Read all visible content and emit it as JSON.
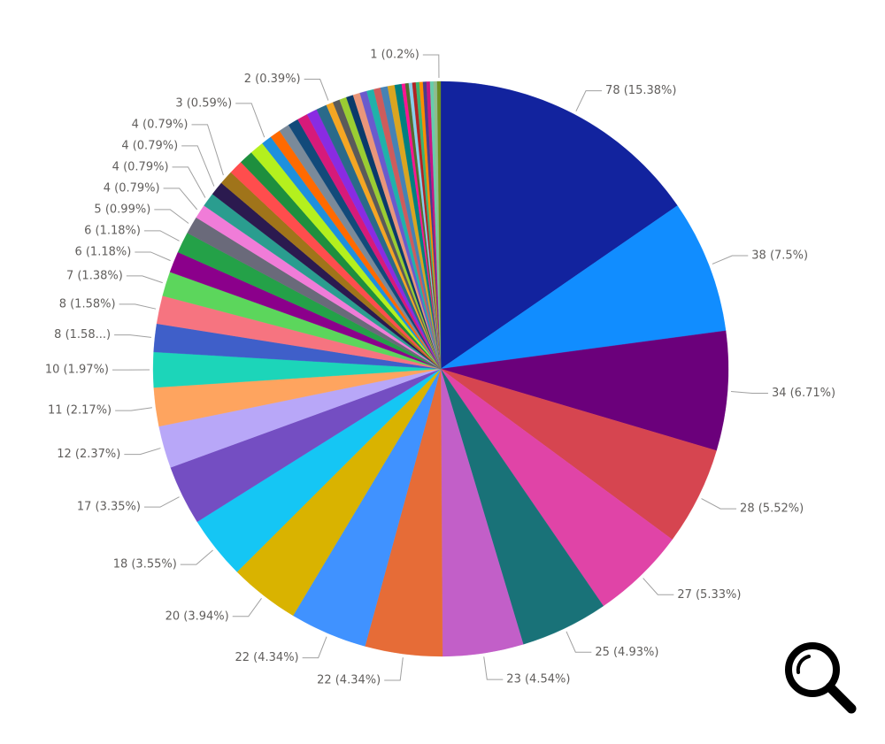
{
  "chart_data": {
    "type": "pie",
    "values": [
      78,
      38,
      34,
      28,
      27,
      25,
      23,
      22,
      22,
      20,
      18,
      17,
      12,
      11,
      10,
      8,
      8,
      7,
      6,
      6,
      5,
      4,
      4,
      4,
      4,
      4,
      4,
      4,
      3,
      3,
      3,
      3,
      3,
      3,
      3,
      2,
      2,
      2,
      2,
      2,
      2,
      2,
      2,
      2,
      2,
      2,
      1,
      1,
      1,
      1,
      1,
      1,
      1,
      1,
      1,
      1,
      1
    ],
    "value_labels": [
      "78 (15.38%)",
      "38 (7.5%)",
      "34 (6.71%)",
      "28 (5.52%)",
      "27 (5.33%)",
      "25 (4.93%)",
      "23 (4.54%)",
      "22 (4.34%)",
      "22 (4.34%)",
      "20 (3.94%)",
      "18 (3.55%)",
      "17 (3.35%)",
      "12 (2.37%)",
      "11 (2.17%)",
      "10 (1.97%)",
      "8 (1.58...)",
      "8 (1.58%)",
      "7 (1.38%)",
      "6 (1.18%)",
      "6 (1.18%)",
      "5 (0.99%)",
      "4 (0.79%)",
      "4 (0.79%)",
      "4 (0.79%)",
      "4 (0.79%)",
      null,
      null,
      null,
      "3 (0.59%)",
      null,
      null,
      null,
      null,
      null,
      null,
      "2 (0.39%)",
      null,
      null,
      null,
      null,
      null,
      null,
      null,
      null,
      null,
      null,
      null,
      null,
      null,
      null,
      null,
      null,
      null,
      null,
      null,
      null,
      "1 (0.2%)"
    ],
    "colors": [
      "#12239e",
      "#118dff",
      "#6b007b",
      "#d64550",
      "#e044a7",
      "#197278",
      "#c25fc8",
      "#e66c37",
      "#4092ff",
      "#d9b300",
      "#15c6f4",
      "#744ec2",
      "#b8a7f8",
      "#fea45f",
      "#1cd5b9",
      "#3f5fc9",
      "#f67480",
      "#5cd65c",
      "#8b008b",
      "#24a148",
      "#6a6a7a",
      "#f07cd8",
      "#2a9d8f",
      "#2b1a4f",
      "#a0741a",
      "#ff4d4d",
      "#1e8f3e",
      "#b4f01e",
      "#1e90dd",
      "#ff6a00",
      "#7a8a9a",
      "#124a7a",
      "#d61a7a",
      "#8a2be2",
      "#2a6a8a",
      "#f5a623",
      "#5a5a5a",
      "#9acd32",
      "#0a3a6a",
      "#e9967a",
      "#6a5acd",
      "#20b2aa",
      "#cd5c5c",
      "#4682b4",
      "#daa520",
      "#008080",
      "#ff1493",
      "#556b2f",
      "#87ceeb",
      "#b22222",
      "#3cb371",
      "#ff8c00",
      "#483d8b",
      "#c71585",
      "#66cdaa",
      "#8fbc8f",
      "#6b8e23"
    ]
  }
}
